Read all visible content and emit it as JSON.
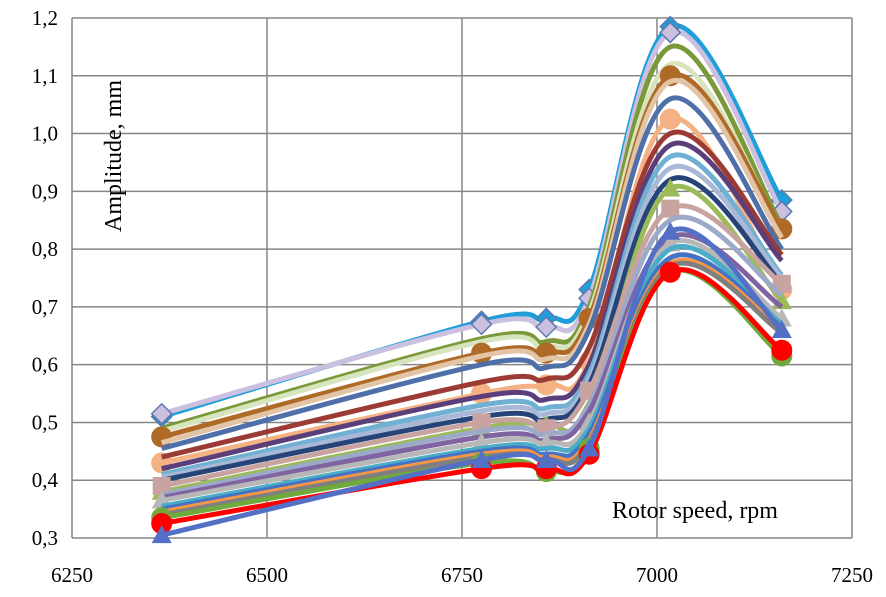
{
  "chart_data": {
    "type": "line",
    "xlabel": "Rotor speed, rpm",
    "ylabel": "Amplitude, mm",
    "xlim": [
      6250,
      7250
    ],
    "ylim": [
      0.3,
      1.2
    ],
    "xticks": [
      "6250",
      "6500",
      "6750",
      "7000",
      "7250"
    ],
    "yticks": [
      "0,3",
      "0,4",
      "0,5",
      "0,6",
      "0,7",
      "0,8",
      "0,9",
      "1,0",
      "1,1",
      "1,2"
    ],
    "grid": true,
    "legend": "none",
    "x": [
      6365,
      6775,
      6858,
      6913,
      7017,
      7160
    ],
    "series": [
      {
        "color": "#1f9fd9",
        "marker": "diamond",
        "values": [
          0.51,
          0.675,
          0.68,
          0.73,
          1.185,
          0.885
        ]
      },
      {
        "color": "#ccc0e0",
        "marker": "diamond",
        "values": [
          0.515,
          0.67,
          0.665,
          0.715,
          1.175,
          0.865
        ]
      },
      {
        "color": "#7a9a3a",
        "marker": "none",
        "values": [
          0.49,
          0.645,
          0.64,
          0.7,
          1.15,
          0.84
        ]
      },
      {
        "color": "#d7e4bd",
        "marker": "none",
        "values": [
          0.485,
          0.64,
          0.63,
          0.69,
          1.12,
          0.83
        ]
      },
      {
        "color": "#b06a28",
        "marker": "circle",
        "values": [
          0.475,
          0.62,
          0.62,
          0.68,
          1.1,
          0.835
        ]
      },
      {
        "color": "#e2c4a6",
        "marker": "none",
        "values": [
          0.465,
          0.615,
          0.61,
          0.67,
          1.09,
          0.82
        ]
      },
      {
        "color": "#4e6fa8",
        "marker": "none",
        "values": [
          0.455,
          0.6,
          0.595,
          0.66,
          1.06,
          0.8
        ]
      },
      {
        "color": "#f4b183",
        "marker": "circle",
        "values": [
          0.43,
          0.55,
          0.565,
          0.605,
          1.025,
          0.73
        ]
      },
      {
        "color": "#9c3b36",
        "marker": "none",
        "values": [
          0.44,
          0.57,
          0.575,
          0.63,
          1.0,
          0.79
        ]
      },
      {
        "color": "#5b3f7a",
        "marker": "none",
        "values": [
          0.42,
          0.545,
          0.54,
          0.6,
          0.98,
          0.78
        ]
      },
      {
        "color": "#6fb0d3",
        "marker": "none",
        "values": [
          0.41,
          0.53,
          0.525,
          0.585,
          0.96,
          0.755
        ]
      },
      {
        "color": "#a9b8d6",
        "marker": "none",
        "values": [
          0.405,
          0.52,
          0.515,
          0.575,
          0.94,
          0.75
        ]
      },
      {
        "color": "#264478",
        "marker": "none",
        "values": [
          0.4,
          0.51,
          0.505,
          0.565,
          0.92,
          0.74
        ]
      },
      {
        "color": "#9bbb59",
        "marker": "triangle",
        "values": [
          0.38,
          0.49,
          0.495,
          0.525,
          0.905,
          0.71
        ]
      },
      {
        "color": "#c9a3a0",
        "marker": "square",
        "values": [
          0.39,
          0.5,
          0.49,
          0.555,
          0.87,
          0.74
        ]
      },
      {
        "color": "#9da9c9",
        "marker": "none",
        "values": [
          0.375,
          0.485,
          0.48,
          0.53,
          0.85,
          0.72
        ]
      },
      {
        "color": "#8064a2",
        "marker": "none",
        "values": [
          0.37,
          0.475,
          0.47,
          0.52,
          0.82,
          0.7
        ]
      },
      {
        "color": "#b7b7b7",
        "marker": "triangle",
        "values": [
          0.365,
          0.465,
          0.465,
          0.5,
          0.81,
          0.68
        ]
      },
      {
        "color": "#4aacc6",
        "marker": "none",
        "values": [
          0.355,
          0.455,
          0.455,
          0.49,
          0.8,
          0.67
        ]
      },
      {
        "color": "#4472c4",
        "marker": "none",
        "values": [
          0.35,
          0.45,
          0.445,
          0.48,
          0.785,
          0.665
        ]
      },
      {
        "color": "#f79646",
        "marker": "none",
        "values": [
          0.345,
          0.445,
          0.44,
          0.47,
          0.775,
          0.66
        ]
      },
      {
        "color": "#7f7f7f",
        "marker": "none",
        "values": [
          0.34,
          0.44,
          0.435,
          0.465,
          0.77,
          0.655
        ]
      },
      {
        "color": "#6faa3c",
        "marker": "circle",
        "values": [
          0.335,
          0.43,
          0.415,
          0.455,
          0.76,
          0.615
        ]
      },
      {
        "color": "#ff0000",
        "marker": "circle",
        "values": [
          0.325,
          0.42,
          0.42,
          0.445,
          0.76,
          0.625
        ]
      },
      {
        "color": "#5470c6",
        "marker": "triangle",
        "values": [
          0.305,
          0.435,
          0.435,
          0.455,
          0.83,
          0.66
        ]
      }
    ]
  }
}
